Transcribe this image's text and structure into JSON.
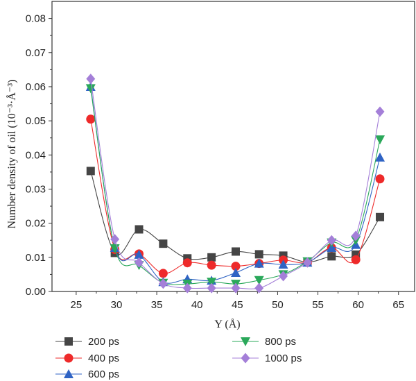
{
  "chart_data": {
    "type": "line",
    "title": "",
    "xlabel": "Y (Å)",
    "ylabel": "Number density of oil (10⁻³·Å⁻³)",
    "xlim": [
      22,
      67
    ],
    "ylim": [
      0,
      0.085
    ],
    "xticks": [
      25,
      30,
      35,
      40,
      45,
      50,
      55,
      60,
      65
    ],
    "xtick_labels": [
      "25",
      "30",
      "35",
      "40",
      "45",
      "50",
      "55",
      "60",
      "65"
    ],
    "yticks": [
      0,
      0.01,
      0.02,
      0.03,
      0.04,
      0.05,
      0.06,
      0.07,
      0.08
    ],
    "ytick_labels": [
      "0.00",
      "0.01",
      "0.02",
      "0.03",
      "0.04",
      "0.05",
      "0.06",
      "0.07",
      "0.08"
    ],
    "grid": false,
    "legend_position": "below-left",
    "x": [
      26.8,
      29.8,
      32.8,
      35.8,
      38.8,
      41.8,
      44.8,
      47.7,
      50.7,
      53.7,
      56.7,
      59.7,
      62.7
    ],
    "series": [
      {
        "name": "200 ps",
        "marker": "square",
        "color": "#454545",
        "values": [
          0.0353,
          0.0113,
          0.0182,
          0.014,
          0.0097,
          0.01,
          0.0117,
          0.0109,
          0.0105,
          0.0086,
          0.0103,
          0.0108,
          0.0218
        ]
      },
      {
        "name": "400 ps",
        "marker": "circle",
        "color": "#ee2a2a",
        "values": [
          0.0505,
          0.0123,
          0.011,
          0.0053,
          0.0084,
          0.0077,
          0.0074,
          0.0082,
          0.0092,
          0.0085,
          0.0128,
          0.0093,
          0.033
        ]
      },
      {
        "name": "600 ps",
        "marker": "triangle-up",
        "color": "#2f63c4",
        "values": [
          0.06,
          0.0128,
          0.0108,
          0.0028,
          0.0036,
          0.0032,
          0.0055,
          0.0082,
          0.0079,
          0.0085,
          0.0128,
          0.0137,
          0.0393
        ]
      },
      {
        "name": "800 ps",
        "marker": "triangle-down",
        "color": "#2aa85a",
        "values": [
          0.0595,
          0.0126,
          0.0077,
          0.0025,
          0.0022,
          0.0028,
          0.0022,
          0.0033,
          0.005,
          0.0088,
          0.0143,
          0.015,
          0.0445
        ]
      },
      {
        "name": "1000 ps",
        "marker": "diamond",
        "color": "#a47fd8",
        "values": [
          0.0623,
          0.0153,
          0.0085,
          0.0023,
          0.001,
          0.001,
          0.001,
          0.001,
          0.0045,
          0.0085,
          0.015,
          0.0163,
          0.0527
        ]
      }
    ]
  }
}
